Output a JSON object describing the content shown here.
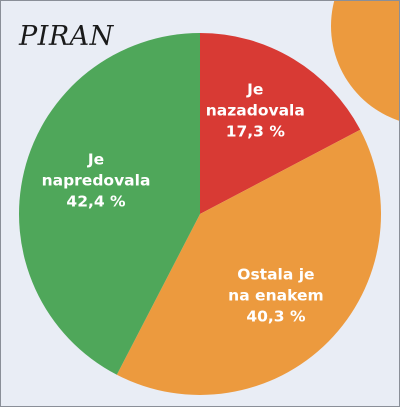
{
  "chart_data": {
    "type": "pie",
    "title": "PIRAN",
    "slices": [
      {
        "label": [
          "Je",
          "nazadovala",
          "17,3 %"
        ],
        "value": 17.3,
        "color": "#d83a34"
      },
      {
        "label": [
          "Ostala je",
          "na enakem",
          "40,3 %"
        ],
        "value": 40.3,
        "color": "#ec9a3e"
      },
      {
        "label": [
          "Je",
          "napredovala",
          "42,4 %"
        ],
        "value": 42.4,
        "color": "#4fa75a"
      }
    ],
    "start_angle_deg": 0,
    "direction": "clockwise",
    "legend": "none",
    "decor_color": "#ec9a3e"
  }
}
